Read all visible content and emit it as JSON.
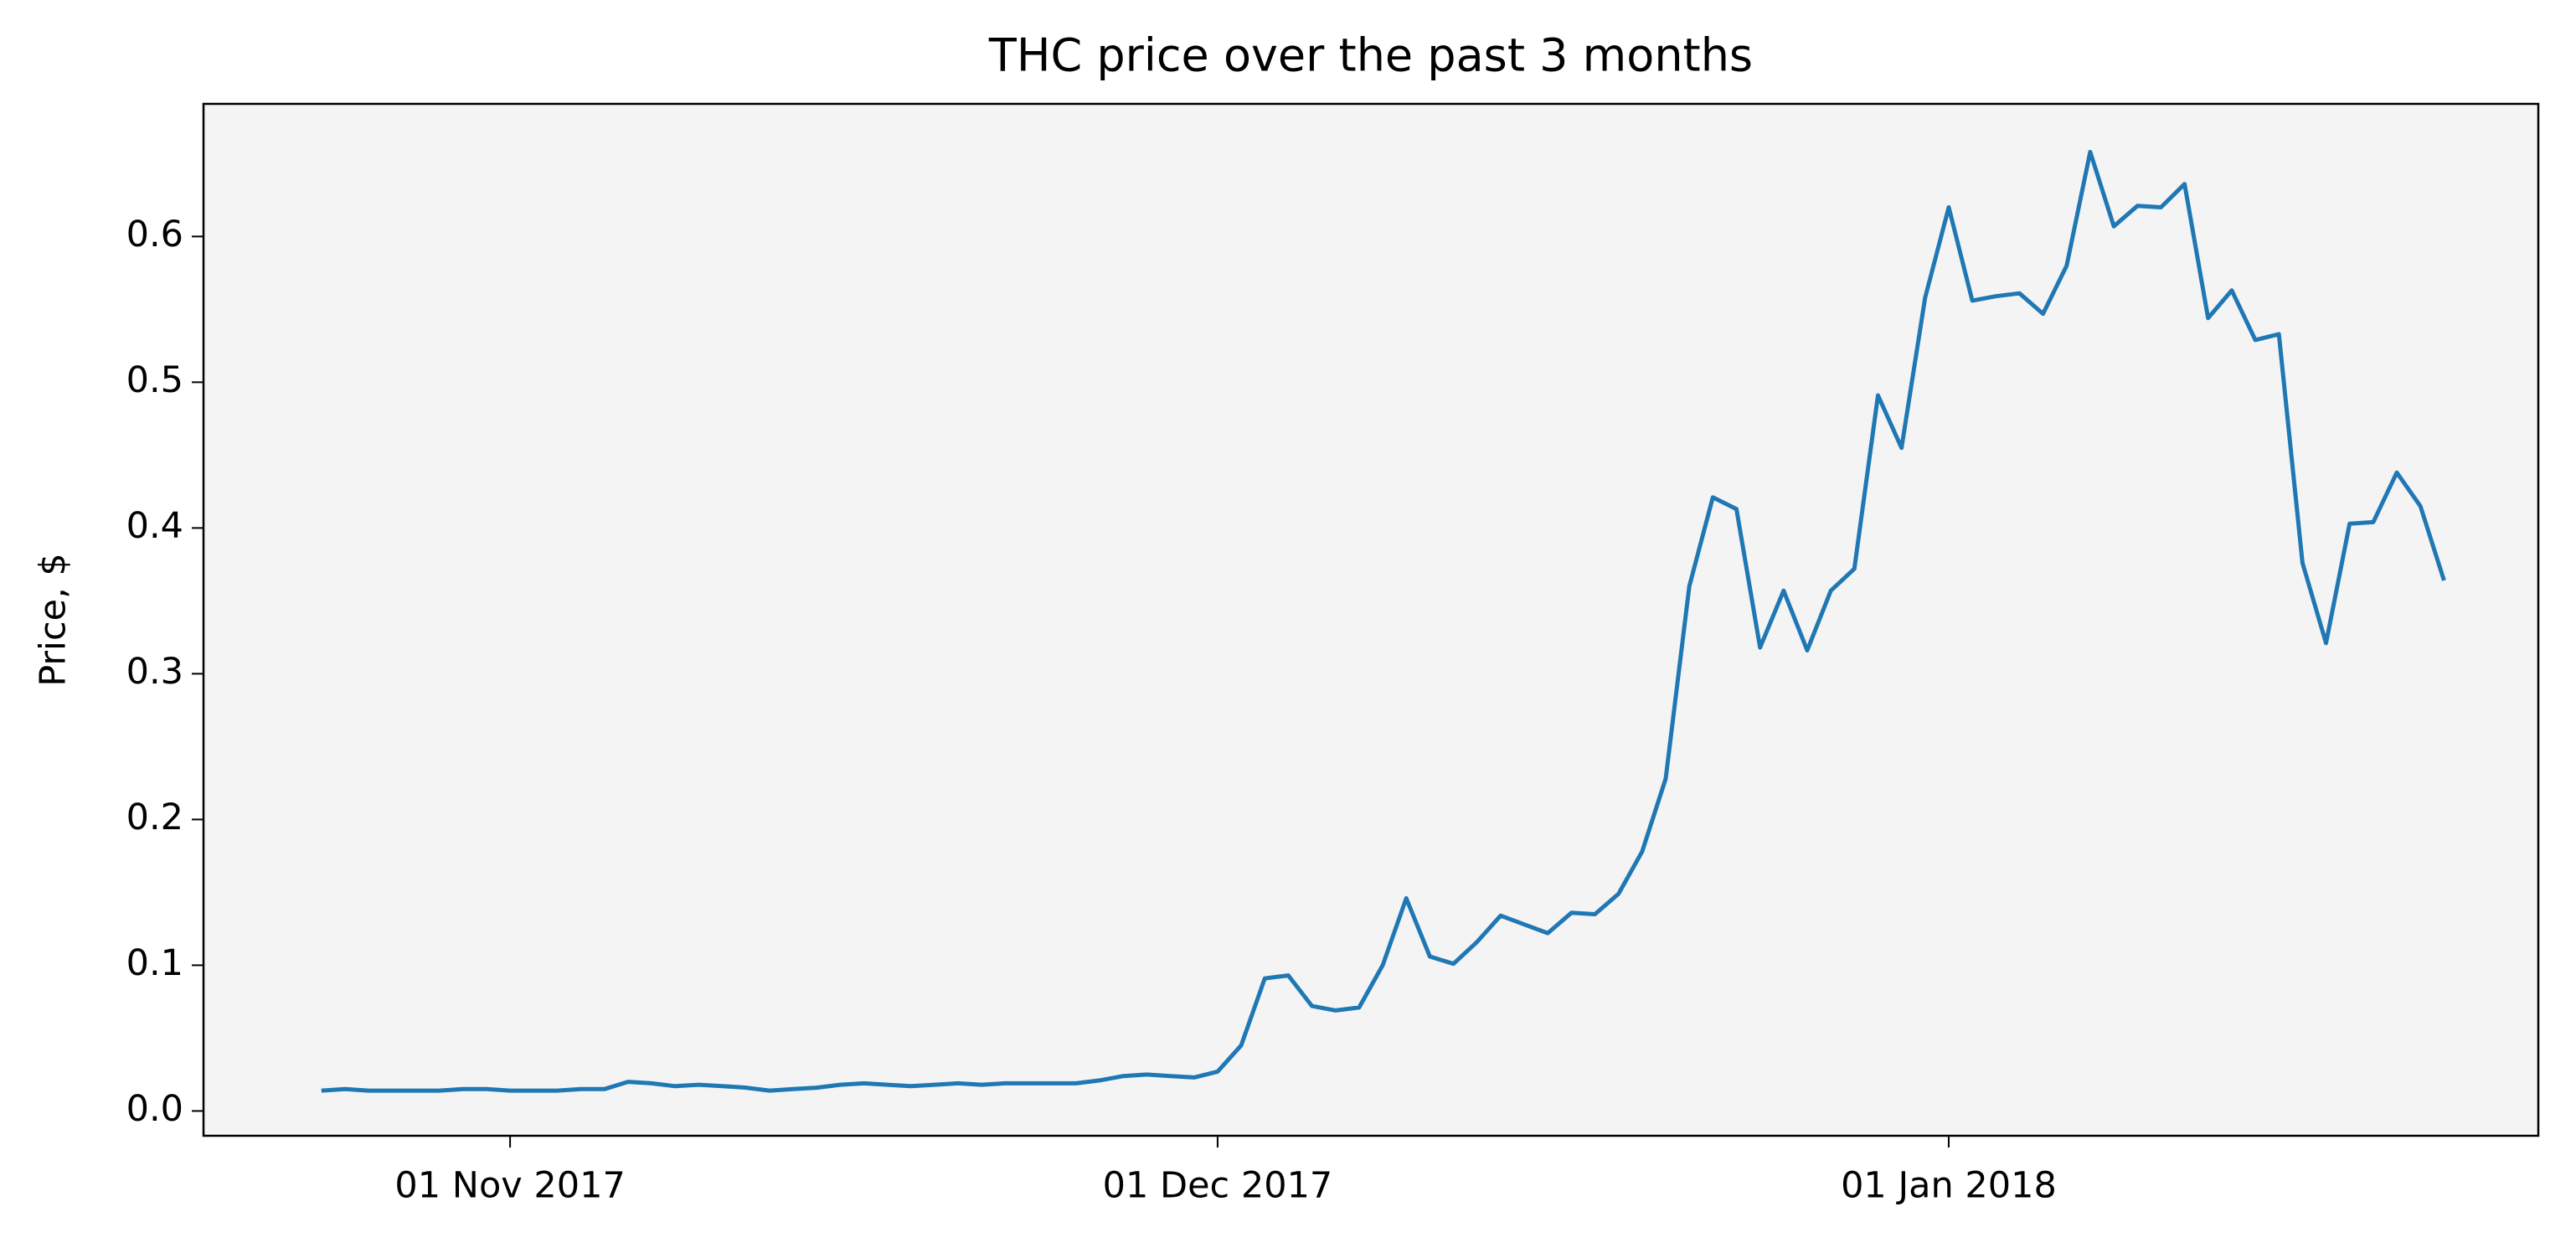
{
  "chart_data": {
    "type": "line",
    "title": "THC price over the past 3 months",
    "y_label": "Price, $",
    "x": [
      "2017-10-24",
      "2017-10-25",
      "2017-10-26",
      "2017-10-27",
      "2017-10-28",
      "2017-10-29",
      "2017-10-30",
      "2017-10-31",
      "2017-11-01",
      "2017-11-02",
      "2017-11-03",
      "2017-11-04",
      "2017-11-05",
      "2017-11-06",
      "2017-11-07",
      "2017-11-08",
      "2017-11-09",
      "2017-11-10",
      "2017-11-11",
      "2017-11-12",
      "2017-11-13",
      "2017-11-14",
      "2017-11-15",
      "2017-11-16",
      "2017-11-17",
      "2017-11-18",
      "2017-11-19",
      "2017-11-20",
      "2017-11-21",
      "2017-11-22",
      "2017-11-23",
      "2017-11-24",
      "2017-11-25",
      "2017-11-26",
      "2017-11-27",
      "2017-11-28",
      "2017-11-29",
      "2017-11-30",
      "2017-12-01",
      "2017-12-02",
      "2017-12-03",
      "2017-12-04",
      "2017-12-05",
      "2017-12-06",
      "2017-12-07",
      "2017-12-08",
      "2017-12-09",
      "2017-12-10",
      "2017-12-11",
      "2017-12-12",
      "2017-12-13",
      "2017-12-14",
      "2017-12-15",
      "2017-12-16",
      "2017-12-17",
      "2017-12-18",
      "2017-12-19",
      "2017-12-20",
      "2017-12-21",
      "2017-12-22",
      "2017-12-23",
      "2017-12-24",
      "2017-12-25",
      "2017-12-26",
      "2017-12-27",
      "2017-12-28",
      "2017-12-29",
      "2017-12-30",
      "2017-12-31",
      "2018-01-01",
      "2018-01-02",
      "2018-01-03",
      "2018-01-04",
      "2018-01-05",
      "2018-01-06",
      "2018-01-07",
      "2018-01-08",
      "2018-01-09",
      "2018-01-10",
      "2018-01-11",
      "2018-01-12",
      "2018-01-13",
      "2018-01-14",
      "2018-01-15",
      "2018-01-16",
      "2018-01-17",
      "2018-01-18",
      "2018-01-19",
      "2018-01-20",
      "2018-01-21",
      "2018-01-22"
    ],
    "series": [
      {
        "color": "#1f77b4",
        "values": [
          0.014,
          0.015,
          0.014,
          0.014,
          0.014,
          0.014,
          0.015,
          0.015,
          0.014,
          0.014,
          0.014,
          0.015,
          0.015,
          0.02,
          0.019,
          0.017,
          0.018,
          0.017,
          0.016,
          0.014,
          0.015,
          0.016,
          0.018,
          0.019,
          0.018,
          0.017,
          0.018,
          0.019,
          0.018,
          0.019,
          0.019,
          0.019,
          0.019,
          0.021,
          0.024,
          0.025,
          0.024,
          0.023,
          0.027,
          0.045,
          0.091,
          0.093,
          0.072,
          0.069,
          0.071,
          0.1,
          0.146,
          0.106,
          0.101,
          0.116,
          0.134,
          0.128,
          0.122,
          0.136,
          0.135,
          0.149,
          0.178,
          0.228,
          0.36,
          0.421,
          0.413,
          0.318,
          0.357,
          0.316,
          0.357,
          0.372,
          0.491,
          0.455,
          0.558,
          0.62,
          0.556,
          0.559,
          0.561,
          0.547,
          0.58,
          0.658,
          0.607,
          0.621,
          0.62,
          0.636,
          0.544,
          0.563,
          0.529,
          0.533,
          0.376,
          0.321,
          0.403,
          0.404,
          0.438,
          0.415,
          0.364
        ]
      }
    ],
    "xlim": [
      "2017-10-19",
      "2018-01-26"
    ],
    "xticks": [
      {
        "value": "2017-11-01",
        "label": "01 Nov 2017"
      },
      {
        "value": "2017-12-01",
        "label": "01 Dec 2017"
      },
      {
        "value": "2018-01-01",
        "label": "01 Jan 2018"
      }
    ],
    "ylim": [
      -0.017,
      0.691
    ],
    "yticks": [
      {
        "value": 0,
        "label": "0.0"
      },
      0.1,
      0.2,
      0.3,
      0.4,
      0.5,
      0.6
    ],
    "grid": false,
    "background": "#f4f4f4"
  }
}
